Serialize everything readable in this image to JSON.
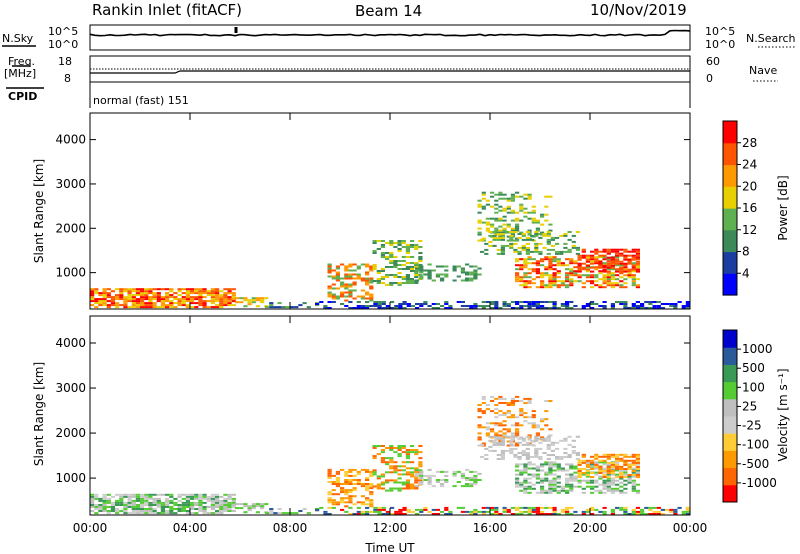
{
  "header": {
    "station": "Rankin Inlet (fitACF)",
    "beam": "Beam 14",
    "date": "10/Nov/2019"
  },
  "top_panels": {
    "nsky_label": "N.Sky",
    "nsky_ticks": [
      "10^5",
      "10^0"
    ],
    "nsearch_label": "N.Search",
    "nsearch_ticks": [
      "10^5",
      "10^0"
    ],
    "freq_label_1": "Freq.",
    "freq_label_2": "[MHz]",
    "freq_ticks": [
      "18",
      "8"
    ],
    "nave_label": "Nave",
    "nave_ticks": [
      "60",
      "0"
    ],
    "cpid_label": "CPID",
    "cpid_text": "normal (fast) 151"
  },
  "colors": {
    "power_scale": [
      "#0000ff",
      "#1b3fa0",
      "#3c8a5a",
      "#5fb050",
      "#e8d000",
      "#ff9900",
      "#ff5500",
      "#ff0000"
    ],
    "velocity_scale": [
      "#ff0000",
      "#ff6600",
      "#ff9900",
      "#ffcc33",
      "#cccccc",
      "#bfbfbf",
      "#55cc33",
      "#3a9a55",
      "#2a5a9a",
      "#0000cc"
    ]
  },
  "chart_data": [
    {
      "type": "heatmap",
      "name": "power",
      "x_ticks": [
        "00:00",
        "04:00",
        "08:00",
        "12:00",
        "16:00",
        "20:00",
        "00:00"
      ],
      "ylabel": "Slant Range [km]",
      "y_ticks": [
        1000,
        2000,
        3000,
        4000
      ],
      "ylim": [
        180,
        4600
      ],
      "colorbar_label": "Power [dB]",
      "colorbar_ticks": [
        "4",
        "8",
        "12",
        "16",
        "20",
        "24",
        "28"
      ],
      "colorbar_range": [
        0,
        30
      ]
    },
    {
      "type": "heatmap",
      "name": "velocity",
      "x_ticks": [
        "00:00",
        "04:00",
        "08:00",
        "12:00",
        "16:00",
        "20:00",
        "00:00"
      ],
      "xlabel": "Time UT",
      "ylabel": "Slant Range [km]",
      "y_ticks": [
        1000,
        2000,
        3000,
        4000
      ],
      "ylim": [
        180,
        4600
      ],
      "colorbar_label": "Velocity [m s⁻¹]",
      "colorbar_ticks": [
        "-1000",
        "-500",
        "-100",
        "-25",
        "25",
        "100",
        "500",
        "1000"
      ]
    }
  ]
}
